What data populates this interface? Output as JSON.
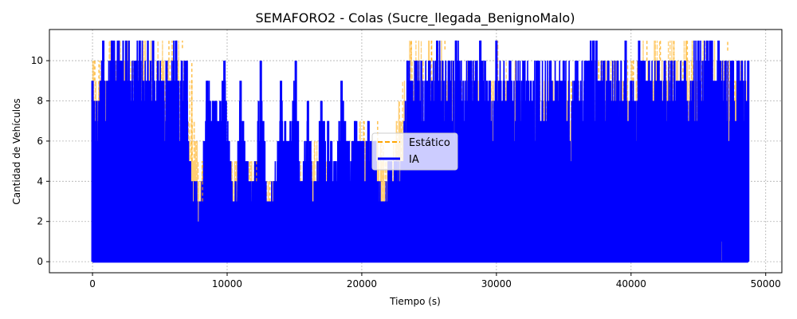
{
  "chart_data": {
    "type": "line",
    "title": "SEMAFORO2 - Colas (Sucre_llegada_BenignoMalo)",
    "xlabel": "Tiempo (s)",
    "ylabel": "Cantidad de Vehículos",
    "xlim": [
      -3200,
      51200
    ],
    "ylim": [
      -0.55,
      11.55
    ],
    "x_ticks": [
      0,
      10000,
      20000,
      30000,
      40000,
      50000
    ],
    "y_ticks": [
      0,
      2,
      4,
      6,
      8,
      10
    ],
    "grid": true,
    "legend_position": "center",
    "series": [
      {
        "name": "Estático",
        "color": "#ffa500",
        "style": "dashed",
        "x": [
          0,
          300,
          1500,
          3000,
          4500,
          5500,
          6500,
          7200,
          8000,
          9000,
          10000,
          11000,
          12000,
          13000,
          14000,
          15000,
          16000,
          17000,
          18000,
          19000,
          20000,
          21000,
          22000,
          23500,
          25000,
          26000,
          27000,
          28000,
          29000,
          30000,
          31000,
          32000,
          33000,
          34000,
          35000,
          36000,
          37000,
          38000,
          39000,
          40000,
          41000,
          42000,
          43000,
          44000,
          45000,
          46000,
          47000,
          48000,
          48700
        ],
        "y_high": [
          10,
          10,
          11,
          11,
          11,
          11,
          11,
          10,
          5,
          6,
          5,
          5,
          5,
          4,
          5,
          5,
          6,
          6,
          4,
          6,
          7,
          7,
          5,
          11,
          11,
          11,
          10,
          10,
          10,
          11,
          10,
          9,
          9,
          10,
          10,
          9,
          10,
          10,
          10,
          10,
          11,
          11,
          11,
          11,
          11,
          11,
          11,
          10,
          10
        ]
      },
      {
        "name": "IA",
        "color": "#0000ff",
        "style": "solid",
        "x": [
          0,
          300,
          800,
          1500,
          2500,
          3500,
          4500,
          5500,
          6200,
          7000,
          7200,
          7600,
          8000,
          8500,
          9000,
          9800,
          10500,
          11000,
          11500,
          12000,
          12500,
          13000,
          13500,
          14000,
          14500,
          15100,
          15500,
          16000,
          16500,
          17000,
          17500,
          18000,
          18500,
          19000,
          19500,
          20000,
          20500,
          21000,
          21500,
          22000,
          22500,
          23000,
          23400,
          24000,
          25000,
          25600,
          26500,
          27000,
          28000,
          28800,
          29500,
          30000,
          31000,
          32000,
          33000,
          34000,
          35000,
          36000,
          37200,
          38000,
          39000,
          39600,
          40000,
          40600,
          41000,
          42000,
          43000,
          44000,
          45000,
          46000,
          46500,
          47500,
          48000,
          48700
        ],
        "y_high": [
          9,
          8,
          11,
          11,
          11,
          11,
          11,
          10,
          11,
          10,
          5,
          4,
          3,
          9,
          8,
          10,
          3,
          9,
          5,
          4,
          10,
          3,
          4,
          9,
          6,
          10,
          4,
          8,
          4,
          8,
          7,
          5,
          9,
          6,
          7,
          6,
          7,
          6,
          3,
          5,
          5,
          5,
          10,
          10,
          10,
          11,
          10,
          11,
          10,
          11,
          9,
          11,
          10,
          10,
          10,
          10,
          10,
          10,
          11,
          10,
          10,
          11,
          9,
          11,
          10,
          10,
          10,
          10,
          11,
          11,
          11,
          10,
          10,
          10
        ]
      }
    ]
  }
}
